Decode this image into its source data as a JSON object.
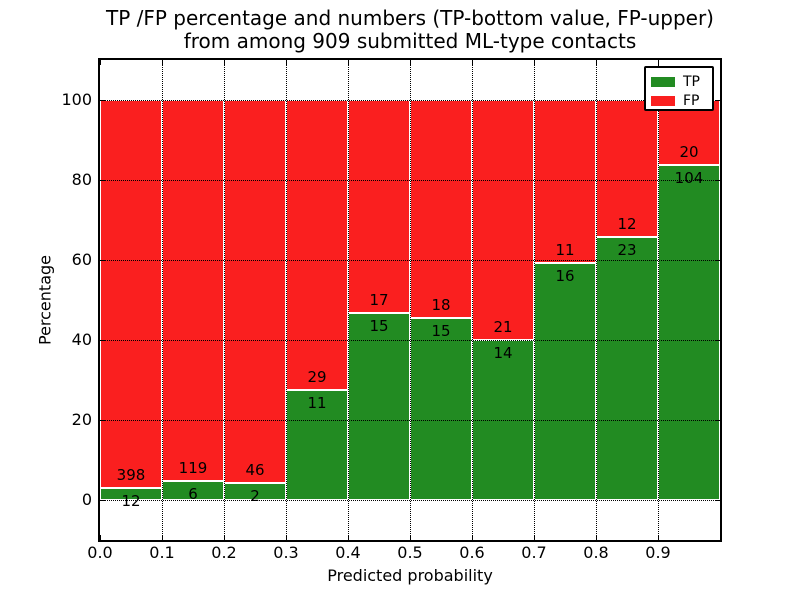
{
  "figure": {
    "title_line1": "TP /FP percentage and numbers (TP-bottom value, FP-upper)",
    "title_line2": "from among 909 submitted ML-type contacts"
  },
  "chart_data": {
    "type": "bar",
    "stacked": true,
    "normalized_to_percent": true,
    "title": "TP /FP percentage and numbers (TP-bottom value, FP-upper) from among 909 submitted ML-type contacts",
    "xlabel": "Predicted probability",
    "ylabel": "Percentage",
    "total_contacts": 909,
    "bin_edges": [
      0.0,
      0.1,
      0.2,
      0.3,
      0.4,
      0.5,
      0.6,
      0.7,
      0.8,
      0.9,
      1.0
    ],
    "x_tick_labels": [
      "0.0",
      "0.1",
      "0.2",
      "0.3",
      "0.4",
      "0.5",
      "0.6",
      "0.7",
      "0.8",
      "0.9"
    ],
    "y_tick_values": [
      0,
      20,
      40,
      60,
      80,
      100
    ],
    "y_tick_labels": [
      "0",
      "20",
      "40",
      "60",
      "80",
      "100"
    ],
    "xlim": [
      0.0,
      1.0
    ],
    "ylim": [
      -10,
      110
    ],
    "grid": {
      "visible": true,
      "style": "dotted"
    },
    "series": [
      {
        "name": "TP",
        "color": "#228b22",
        "counts": [
          12,
          6,
          2,
          11,
          15,
          15,
          14,
          16,
          23,
          104
        ]
      },
      {
        "name": "FP",
        "color": "#fa1f1f",
        "counts": [
          398,
          119,
          46,
          29,
          17,
          18,
          21,
          11,
          12,
          20
        ]
      }
    ],
    "bar_edge_color": "#ffffff",
    "legend": {
      "position": "upper right",
      "items": [
        {
          "label": "TP",
          "color": "#228b22"
        },
        {
          "label": "FP",
          "color": "#fa1f1f"
        }
      ]
    }
  }
}
